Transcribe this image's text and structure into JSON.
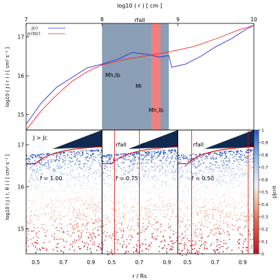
{
  "top_axis": {
    "title": "log10 ( r ) [ cm ]",
    "ticks": [
      7,
      8,
      9,
      10
    ],
    "range": [
      7,
      10
    ]
  },
  "top_panel": {
    "ylabel": "log10 ( J ( r ) ) [ cm² s⁻¹ ]",
    "yticks": [
      15,
      16,
      17
    ],
    "ylim": [
      14.6,
      17.35
    ],
    "legend": [
      "J(r)",
      "Jcrit(r)"
    ],
    "colors": {
      "J": "#2b2bd6",
      "Jcrit": "#ff2020",
      "band": "#8a9fb5",
      "band_mid": "#f08080"
    },
    "band_labels": {
      "left": "Mh,lb",
      "middle": "Mi",
      "right": "Mh,lb",
      "top": "rfall"
    },
    "bands": {
      "left": [
        8.0,
        8.88
      ],
      "middle": [
        8.65,
        8.77
      ]
    }
  },
  "chart_data": {
    "type": "line",
    "x_title": "log10 ( r ) [ cm ]",
    "xlim": [
      7,
      10
    ],
    "ylim": [
      14.6,
      17.35
    ],
    "series": [
      {
        "name": "J(r)",
        "color": "#2b2bd6",
        "x": [
          7.0,
          7.2,
          7.4,
          7.6,
          7.8,
          8.0,
          8.2,
          8.4,
          8.6,
          8.75,
          8.88,
          8.92,
          9.1,
          9.3,
          9.5,
          9.7,
          9.9,
          10.0
        ],
        "y": [
          14.75,
          15.3,
          15.7,
          15.95,
          16.2,
          16.3,
          16.42,
          16.6,
          16.55,
          16.48,
          16.52,
          16.22,
          16.3,
          16.5,
          16.75,
          16.95,
          17.2,
          17.3
        ]
      },
      {
        "name": "Jcrit(r)",
        "color": "#ff2020",
        "x": [
          7.0,
          7.2,
          7.4,
          7.6,
          7.8,
          8.0,
          8.3,
          8.6,
          8.9,
          9.2,
          9.5,
          9.8,
          10.0
        ],
        "y": [
          14.6,
          15.1,
          15.5,
          15.85,
          16.1,
          16.28,
          16.42,
          16.52,
          16.62,
          16.75,
          16.95,
          17.18,
          17.3
        ]
      }
    ]
  },
  "bottom_panel": {
    "ylabel": "log10 ( J ( r, θ ) ) [ cm² s⁻¹ ]",
    "xlabel": "r / Rs",
    "yticks": [
      15,
      16,
      17
    ],
    "xticks": [
      "0.5",
      "0.7",
      "0.9"
    ],
    "xlim": [
      0.43,
      0.98
    ],
    "threshold_label": "J > Jc",
    "subpanels": [
      {
        "f_label": "f = 1.00",
        "rfall": null,
        "ri": null,
        "labels": {
          "rfall": "",
          "ri": ""
        }
      },
      {
        "f_label": "f = 0.75",
        "rfall": 0.52,
        "ri": 0.7,
        "labels": {
          "rfall": "rfall",
          "ri": "ri"
        }
      },
      {
        "f_label": "f = 0.50",
        "rfall": 0.53,
        "ri": 0.94,
        "labels": {
          "rfall": "rfall",
          "ri": "ri"
        }
      }
    ]
  },
  "colorbar": {
    "label": "J/Jcrit",
    "ticks": [
      "0",
      "0.1",
      "0.2",
      "0.3",
      "0.4",
      "0.5",
      "0.6",
      "0.7",
      "0.8",
      "0.9",
      "1"
    ],
    "colors": [
      "#c0102a",
      "#e8624f",
      "#f5b79a",
      "#f2f2f2",
      "#a8c4ea",
      "#2c58c2"
    ]
  }
}
